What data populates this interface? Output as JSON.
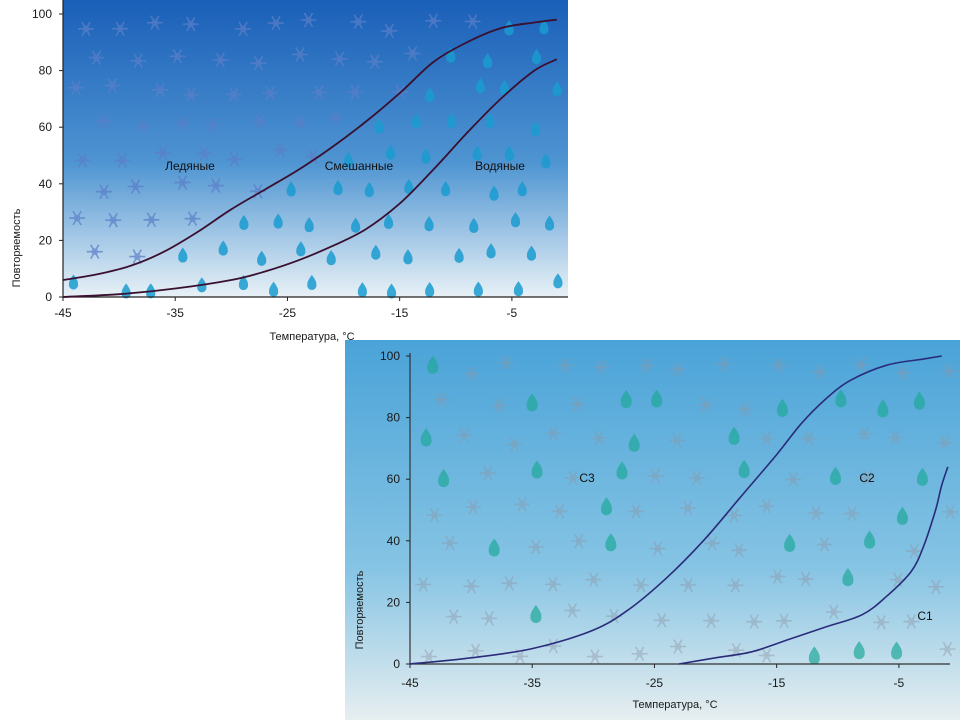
{
  "chart_data": [
    {
      "type": "line",
      "ylabel": "Повторяемость",
      "xlabel": "Температура, °С",
      "xlim": [
        -45,
        0
      ],
      "ylim": [
        0,
        100
      ],
      "x_ticks": [
        "-45",
        "-35",
        "-25",
        "-15",
        "-5"
      ],
      "y_ticks": [
        "0",
        "20",
        "40",
        "60",
        "80",
        "100"
      ],
      "region_labels": [
        "Ледяные",
        "Смешанные",
        "Водяные"
      ],
      "series": [
        {
          "x": [
            -45,
            -42,
            -39,
            -36,
            -33,
            -30,
            -27,
            -24,
            -21,
            -18,
            -15,
            -12,
            -9,
            -6,
            -3,
            -1
          ],
          "values": [
            6,
            8,
            11,
            16,
            23,
            31,
            38,
            45,
            53,
            62,
            72,
            83,
            90,
            95,
            97,
            98
          ]
        },
        {
          "x": [
            -45,
            -40,
            -35,
            -30,
            -27,
            -24,
            -21,
            -18,
            -15,
            -12,
            -9,
            -6,
            -3,
            -1
          ],
          "values": [
            0,
            1,
            3,
            6,
            9,
            13,
            18,
            24,
            33,
            45,
            58,
            70,
            80,
            84
          ]
        }
      ],
      "colors": {
        "line": "#3a1030",
        "bg_top": "#1a5fb8",
        "bg_bottom": "#e8f1f6",
        "snow": "#5b7fc8",
        "drop": "#1a9bd0"
      }
    },
    {
      "type": "line",
      "ylabel": "Повторяемость",
      "xlabel": "Температура, °С",
      "xlim": [
        -45,
        0
      ],
      "ylim": [
        0,
        100
      ],
      "x_ticks": [
        "-45",
        "-35",
        "-25",
        "-15",
        "-5"
      ],
      "y_ticks": [
        "0",
        "20",
        "40",
        "60",
        "80",
        "100"
      ],
      "region_labels": [
        "С3",
        "С2",
        "С1"
      ],
      "series": [
        {
          "x": [
            -45,
            -40,
            -35,
            -30,
            -27,
            -24,
            -21,
            -18,
            -15,
            -13,
            -11,
            -9,
            -6,
            -3,
            -1.5
          ],
          "values": [
            0,
            2,
            5,
            11,
            18,
            28,
            40,
            54,
            68,
            78,
            86,
            92,
            97,
            99,
            100
          ]
        },
        {
          "x": [
            -23,
            -20,
            -17,
            -14,
            -11,
            -8,
            -6,
            -4,
            -3,
            -2,
            -1.5,
            -1
          ],
          "values": [
            0,
            2,
            4,
            8,
            12,
            16,
            22,
            30,
            38,
            50,
            58,
            64
          ]
        }
      ],
      "colors": {
        "line": "#2a2c7a",
        "bg_top": "#4aa3d8",
        "bg_bottom": "#e6eef0",
        "snow": "#8e97a6",
        "drop": "#1fa89a"
      }
    }
  ]
}
